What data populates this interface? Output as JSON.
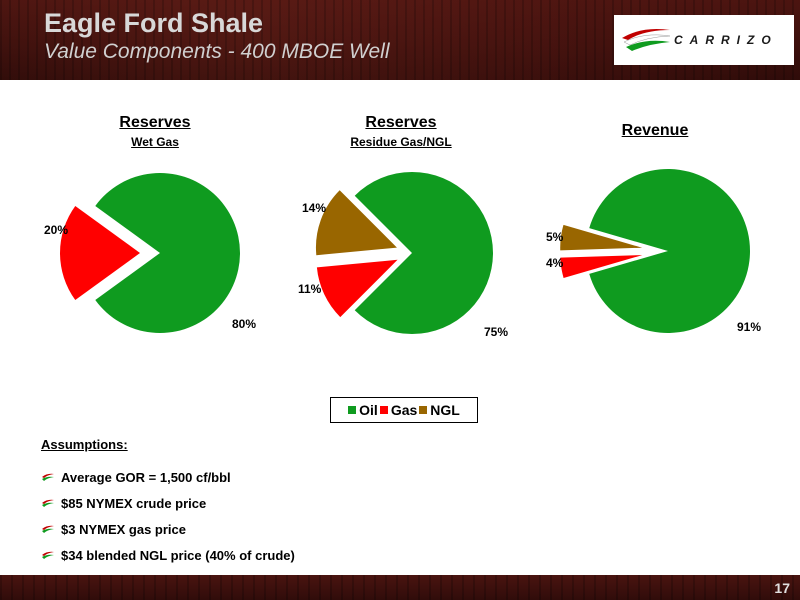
{
  "header": {
    "title": "Eagle Ford Shale",
    "subtitle": "Value Components  - 400 MBOE Well",
    "logo_text": "CARRIZO"
  },
  "colors": {
    "oil": "#0f9b1f",
    "gas": "#ff0000",
    "ngl": "#996600"
  },
  "chart_data": [
    {
      "type": "pie",
      "title": "Reserves",
      "subtitle": "Wet Gas",
      "labels": [
        "Oil",
        "Gas"
      ],
      "values": [
        80,
        20
      ],
      "value_labels": [
        "80%",
        "20%"
      ],
      "exploded": [
        "Gas"
      ]
    },
    {
      "type": "pie",
      "title": "Reserves",
      "subtitle": "Residue Gas/NGL",
      "labels": [
        "Oil",
        "Gas",
        "NGL"
      ],
      "values": [
        75,
        11,
        14
      ],
      "value_labels": [
        "75%",
        "11%",
        "14%"
      ],
      "exploded": [
        "Gas",
        "NGL"
      ]
    },
    {
      "type": "pie",
      "title": "Revenue",
      "subtitle": "",
      "labels": [
        "Oil",
        "Gas",
        "NGL"
      ],
      "values": [
        91,
        4,
        5
      ],
      "value_labels": [
        "91%",
        "4%",
        "5%"
      ],
      "exploded": [
        "Gas",
        "NGL"
      ]
    }
  ],
  "legend": {
    "items": [
      "Oil",
      "Gas",
      "NGL"
    ]
  },
  "assumptions": {
    "heading": "Assumptions:",
    "items": [
      "Average GOR = 1,500 cf/bbl",
      "$85 NYMEX crude price",
      "$3 NYMEX gas price",
      "$34 blended NGL price (40% of crude)"
    ]
  },
  "footer": {
    "page_number": "17"
  }
}
